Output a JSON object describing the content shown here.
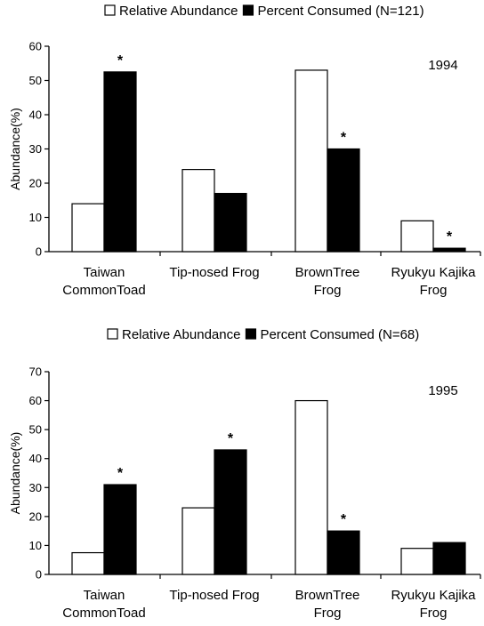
{
  "colors": {
    "relative": "#ffffff",
    "consumed": "#000000",
    "stroke": "#000000"
  },
  "chart_data": [
    {
      "type": "bar",
      "legend": {
        "placement": "top",
        "entries": [
          "Relative Abundance",
          "Percent Consumed (N=121)"
        ]
      },
      "year_label": "1994",
      "ylabel": "Abundance(%)",
      "xlabel": "",
      "ylim": [
        0,
        60
      ],
      "yticks": [
        0,
        10,
        20,
        30,
        40,
        50,
        60
      ],
      "grid": false,
      "categories": [
        [
          "Taiwan",
          "CommonToad"
        ],
        [
          "Tip-nosed Frog"
        ],
        [
          "BrownTree",
          "Frog"
        ],
        [
          "Ryukyu Kajika",
          "Frog"
        ]
      ],
      "series": [
        {
          "name": "Relative Abundance",
          "values": [
            14,
            24,
            53,
            9
          ]
        },
        {
          "name": "Percent Consumed (N=121)",
          "values": [
            52.5,
            17,
            30,
            1
          ]
        }
      ],
      "annotations": [
        {
          "category": 0,
          "series": 1,
          "text": "*"
        },
        {
          "category": 2,
          "series": 1,
          "text": "*"
        },
        {
          "category": 3,
          "series": 1,
          "text": "*"
        }
      ]
    },
    {
      "type": "bar",
      "legend": {
        "placement": "top",
        "entries": [
          "Relative Abundance",
          "Percent Consumed (N=68)"
        ]
      },
      "year_label": "1995",
      "ylabel": "Abundance(%)",
      "xlabel": "",
      "ylim": [
        0,
        70
      ],
      "yticks": [
        0,
        10,
        20,
        30,
        40,
        50,
        60,
        70
      ],
      "grid": false,
      "categories": [
        [
          "Taiwan",
          "CommonToad"
        ],
        [
          "Tip-nosed Frog"
        ],
        [
          "BrownTree",
          "Frog"
        ],
        [
          "Ryukyu Kajika",
          "Frog"
        ]
      ],
      "series": [
        {
          "name": "Relative Abundance",
          "values": [
            7.5,
            23,
            60,
            9
          ]
        },
        {
          "name": "Percent Consumed (N=68)",
          "values": [
            31,
            43,
            15,
            11
          ]
        }
      ],
      "annotations": [
        {
          "category": 0,
          "series": 1,
          "text": "*"
        },
        {
          "category": 1,
          "series": 1,
          "text": "*"
        },
        {
          "category": 2,
          "series": 1,
          "text": "*"
        }
      ]
    }
  ]
}
